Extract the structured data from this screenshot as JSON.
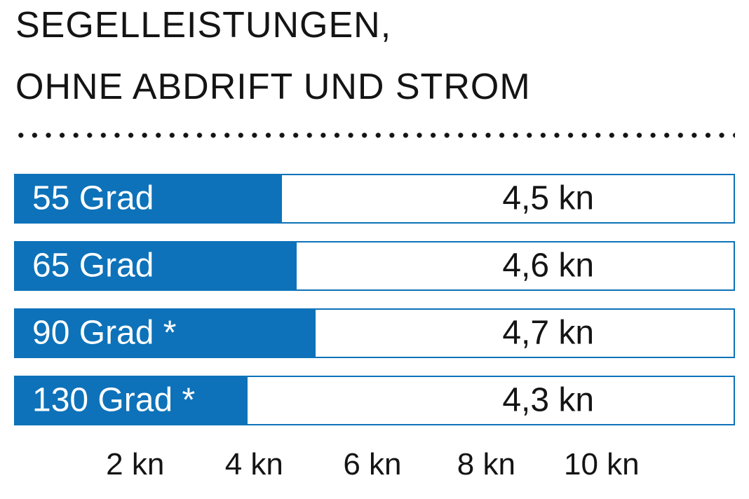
{
  "header": {
    "title_line1": "SEGELLEISTUNGEN,",
    "title_line2": "OHNE ABDRIFT UND STROM"
  },
  "chart_data": {
    "type": "bar",
    "orientation": "horizontal",
    "title": "SEGELLEISTUNGEN, OHNE ABDRIFT UND STROM",
    "categories": [
      "55 Grad",
      "65 Grad",
      "90 Grad *",
      "130 Grad *"
    ],
    "values": [
      4.5,
      4.6,
      4.7,
      4.3
    ],
    "unit": "kn",
    "value_labels": [
      "4,5 kn",
      "4,6 kn",
      "4,7 kn",
      "4,3 kn"
    ],
    "x_ticks": [
      "2 kn",
      "4 kn",
      "6 kn",
      "8 kn",
      "10 kn"
    ],
    "x_range": [
      0,
      10
    ],
    "grid": false,
    "legend": false,
    "bar_color": "#0d72b9",
    "bar_fill_pct": [
      37.2,
      39.2,
      41.8,
      32.4
    ],
    "tick_left_pct": [
      16.8,
      33.3,
      49.7,
      65.5,
      81.5
    ],
    "value_center_pct": 74.1
  },
  "colors": {
    "bar_blue": "#0d72b9",
    "text_dark": "#141414",
    "bar_label_text": "#ffffff",
    "dots": "#141414"
  }
}
